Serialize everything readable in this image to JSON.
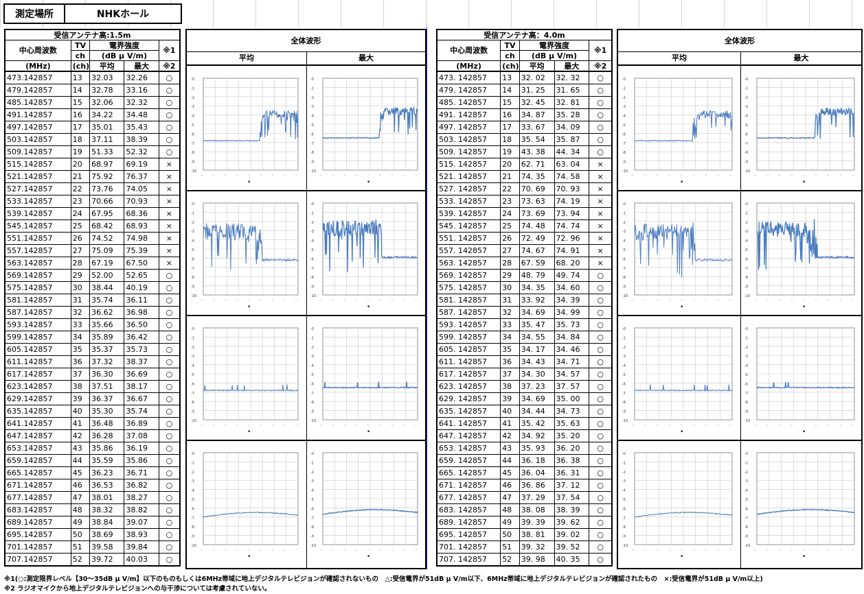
{
  "location": {
    "label": "測定場所",
    "value": "NHKホール"
  },
  "header_common": {
    "freq": "中心周波数",
    "freq_unit": "(MHz)",
    "tv1": "TV",
    "tv2": "ch",
    "tv_unit": "(ch)",
    "field": "電界強度",
    "field_unit": "(dB μ V/m)",
    "avg": "平均",
    "max": "最大",
    "note1": "※1",
    "note2": "※2"
  },
  "left": {
    "antenna": "受信アンテナ高:1.5m"
  },
  "right": {
    "antenna": "受信アンテナ高：4.0m"
  },
  "wave": {
    "title": "全体波形",
    "avg": "平均",
    "max": "最大"
  },
  "freqs": [
    "473.142857",
    "479.142857",
    "485.142857",
    "491.142857",
    "497.142857",
    "503.142857",
    "509.142857",
    "515.142857",
    "521.142857",
    "527.142857",
    "533.142857",
    "539.142857",
    "545.142857",
    "551.142857",
    "557.142857",
    "563.142857",
    "569.142857",
    "575.142857",
    "581.142857",
    "587.142857",
    "593.142857",
    "599.142857",
    "605.142857",
    "611.142857",
    "617.142857",
    "623.142857",
    "629.142857",
    "635.142857",
    "641.142857",
    "647.142857",
    "653.142857",
    "659.142857",
    "665.142857",
    "671.142857",
    "677.142857",
    "683.142857",
    "689.142857",
    "695.142857",
    "701.142857",
    "707.142857"
  ],
  "freqs_r": [
    "473. 142857",
    "479. 142857",
    "485. 142857",
    "491. 142857",
    "497. 142857",
    "503. 142857",
    "509. 142857",
    "515. 142857",
    "521. 142857",
    "527. 142857",
    "533. 142857",
    "539. 142857",
    "545. 142857",
    "551. 142857",
    "557. 142857",
    "563. 142857",
    "569. 142857",
    "575. 142857",
    "581. 142857",
    "587. 142857",
    "593. 142857",
    "599. 142857",
    "605. 142857",
    "611. 142857",
    "617. 142857",
    "623. 142857",
    "629. 142857",
    "635. 142857",
    "641. 142857",
    "647. 142857",
    "653. 142857",
    "659. 142857",
    "665. 142857",
    "671. 142857",
    "677. 142857",
    "683. 142857",
    "689. 142857",
    "695. 142857",
    "701. 142857",
    "707. 142857"
  ],
  "channels": [
    "13",
    "14",
    "15",
    "16",
    "17",
    "18",
    "19",
    "20",
    "21",
    "22",
    "23",
    "24",
    "25",
    "26",
    "27",
    "28",
    "29",
    "30",
    "31",
    "32",
    "33",
    "34",
    "35",
    "36",
    "37",
    "38",
    "39",
    "40",
    "41",
    "42",
    "43",
    "44",
    "45",
    "46",
    "47",
    "48",
    "49",
    "50",
    "51",
    "52"
  ],
  "left_avg": [
    "32.03",
    "32.78",
    "32.06",
    "34.22",
    "35.01",
    "37.11",
    "51.33",
    "68.97",
    "75.92",
    "73.76",
    "70.66",
    "67.95",
    "68.42",
    "74.52",
    "75.09",
    "67.19",
    "52.00",
    "38.44",
    "35.74",
    "36.62",
    "35.66",
    "35.89",
    "35.37",
    "37.32",
    "36.30",
    "37.51",
    "36.37",
    "35.30",
    "36.48",
    "36.28",
    "35.86",
    "35.59",
    "36.23",
    "36.53",
    "38.01",
    "38.32",
    "38.84",
    "38.69",
    "39.58",
    "39.72"
  ],
  "left_max": [
    "32.26",
    "33.16",
    "32.32",
    "34.48",
    "35.43",
    "38.39",
    "52.32",
    "69.19",
    "76.37",
    "74.05",
    "70.93",
    "68.36",
    "68.93",
    "74.98",
    "75.39",
    "67.50",
    "52.65",
    "40.19",
    "36.11",
    "36.98",
    "36.50",
    "36.42",
    "35.73",
    "38.37",
    "36.69",
    "38.17",
    "36.67",
    "35.74",
    "36.89",
    "37.08",
    "36.19",
    "35.86",
    "36.71",
    "36.82",
    "38.27",
    "38.82",
    "39.07",
    "38.93",
    "39.84",
    "40.03"
  ],
  "left_judge": [
    "○",
    "○",
    "○",
    "○",
    "○",
    "○",
    "○",
    "×",
    "×",
    "×",
    "×",
    "×",
    "×",
    "×",
    "×",
    "×",
    "○",
    "○",
    "○",
    "○",
    "○",
    "○",
    "○",
    "○",
    "○",
    "○",
    "○",
    "○",
    "○",
    "○",
    "○",
    "○",
    "○",
    "○",
    "○",
    "○",
    "○",
    "○",
    "○",
    "○"
  ],
  "right_avg": [
    "32. 02",
    "31. 25",
    "32. 45",
    "34. 87",
    "33. 67",
    "35. 54",
    "43. 38",
    "62. 71",
    "74. 35",
    "70. 69",
    "73. 63",
    "73. 69",
    "74. 48",
    "72. 49",
    "74. 67",
    "67. 59",
    "48. 79",
    "34. 35",
    "33. 92",
    "34. 69",
    "35. 47",
    "34. 55",
    "34. 17",
    "34. 43",
    "34. 30",
    "37. 23",
    "34. 69",
    "34. 44",
    "35. 42",
    "34. 92",
    "35. 93",
    "36. 18",
    "36. 04",
    "36. 86",
    "37. 29",
    "38. 08",
    "39. 39",
    "38. 81",
    "39. 32",
    "39. 98"
  ],
  "right_max": [
    "32. 32",
    "31. 65",
    "32. 81",
    "35. 28",
    "34. 09",
    "35. 87",
    "44. 34",
    "63. 04",
    "74. 58",
    "70. 93",
    "74. 19",
    "73. 94",
    "74. 74",
    "72. 96",
    "74. 91",
    "68. 20",
    "49. 74",
    "34. 60",
    "34. 39",
    "34. 99",
    "35. 73",
    "34. 84",
    "34. 46",
    "34. 71",
    "34. 57",
    "37. 57",
    "35. 00",
    "34. 73",
    "35. 63",
    "35. 20",
    "36. 20",
    "36. 38",
    "36. 31",
    "37. 12",
    "37. 54",
    "38. 39",
    "39. 62",
    "39. 02",
    "39. 52",
    "40. 35"
  ],
  "right_judge": [
    "○",
    "○",
    "○",
    "○",
    "○",
    "○",
    "○",
    "×",
    "×",
    "×",
    "×",
    "×",
    "×",
    "×",
    "×",
    "×",
    "○",
    "○",
    "○",
    "○",
    "○",
    "○",
    "○",
    "○",
    "○",
    "○",
    "○",
    "○",
    "○",
    "○",
    "○",
    "○",
    "○",
    "○",
    "○",
    "○",
    "○",
    "○",
    "○",
    "○"
  ],
  "footnote1": "※1(○:測定限界レベル【30～35dB μ V/m】以下のものもしくは6MHz帯域に地上デジタルテレビジョンが確認されないもの　△:受信電界が51dB μ V/m以下、6MHz帯域に地上デジタルテレビジョンが確認されたもの　×:受信電界が51dB μ V/m以上)",
  "footnote2": "※2 ラジオマイクから地上デジタルテレビジョンへの与干渉については考慮されていない。",
  "line_color": "#4a7cc0"
}
